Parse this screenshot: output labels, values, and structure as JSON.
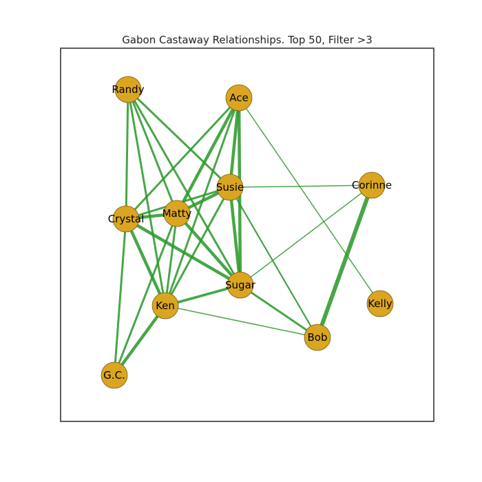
{
  "title": "Gabon Castaway Relationships. Top 50, Filter >3",
  "colors": {
    "node_fill": "#DAA520",
    "node_stroke": "#7a5a10",
    "edge": "#2E9A2E",
    "frame": "#333333"
  },
  "nodes": [
    {
      "id": "randy",
      "label": "Randy"
    },
    {
      "id": "ace",
      "label": "Ace"
    },
    {
      "id": "susie",
      "label": "Susie"
    },
    {
      "id": "corinne",
      "label": "Corinne"
    },
    {
      "id": "crystal",
      "label": "Crystal"
    },
    {
      "id": "matty",
      "label": "Matty"
    },
    {
      "id": "sugar",
      "label": "Sugar"
    },
    {
      "id": "kelly",
      "label": "Kelly"
    },
    {
      "id": "ken",
      "label": "Ken"
    },
    {
      "id": "bob",
      "label": "Bob"
    },
    {
      "id": "gc",
      "label": "G.C."
    }
  ],
  "edges": [
    {
      "source": "randy",
      "target": "crystal",
      "weight": 4
    },
    {
      "source": "randy",
      "target": "matty",
      "weight": 4
    },
    {
      "source": "randy",
      "target": "ken",
      "weight": 4
    },
    {
      "source": "randy",
      "target": "susie",
      "weight": 4
    },
    {
      "source": "randy",
      "target": "sugar",
      "weight": 4
    },
    {
      "source": "ace",
      "target": "susie",
      "weight": 6
    },
    {
      "source": "ace",
      "target": "matty",
      "weight": 6
    },
    {
      "source": "ace",
      "target": "crystal",
      "weight": 4
    },
    {
      "source": "ace",
      "target": "sugar",
      "weight": 6
    },
    {
      "source": "ace",
      "target": "ken",
      "weight": 4
    },
    {
      "source": "ace",
      "target": "kelly",
      "weight": 2
    },
    {
      "source": "susie",
      "target": "matty",
      "weight": 6
    },
    {
      "source": "susie",
      "target": "crystal",
      "weight": 4
    },
    {
      "source": "susie",
      "target": "corinne",
      "weight": 2
    },
    {
      "source": "susie",
      "target": "sugar",
      "weight": 6
    },
    {
      "source": "susie",
      "target": "ken",
      "weight": 4
    },
    {
      "source": "susie",
      "target": "bob",
      "weight": 3
    },
    {
      "source": "corinne",
      "target": "bob",
      "weight": 8
    },
    {
      "source": "corinne",
      "target": "sugar",
      "weight": 2
    },
    {
      "source": "crystal",
      "target": "matty",
      "weight": 6
    },
    {
      "source": "crystal",
      "target": "ken",
      "weight": 6
    },
    {
      "source": "crystal",
      "target": "sugar",
      "weight": 6
    },
    {
      "source": "crystal",
      "target": "gc",
      "weight": 4
    },
    {
      "source": "matty",
      "target": "sugar",
      "weight": 6
    },
    {
      "source": "matty",
      "target": "ken",
      "weight": 4
    },
    {
      "source": "matty",
      "target": "gc",
      "weight": 4
    },
    {
      "source": "sugar",
      "target": "ken",
      "weight": 5
    },
    {
      "source": "sugar",
      "target": "bob",
      "weight": 4
    },
    {
      "source": "ken",
      "target": "bob",
      "weight": 2
    },
    {
      "source": "ken",
      "target": "gc",
      "weight": 6
    }
  ]
}
